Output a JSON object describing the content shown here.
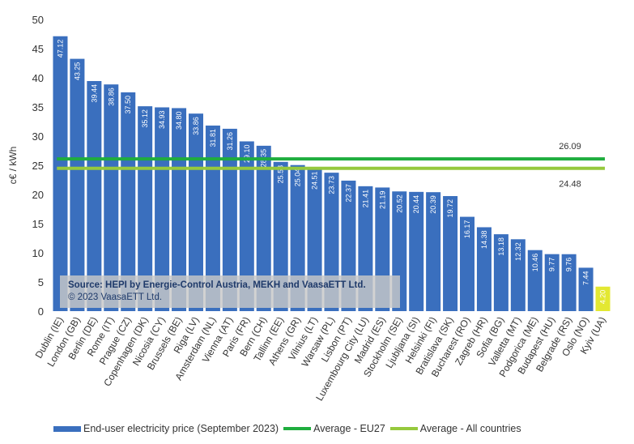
{
  "chart_data": {
    "type": "bar",
    "ylabel": "c€ / kWh",
    "ylim": [
      0,
      50
    ],
    "yticks": [
      0,
      5,
      10,
      15,
      20,
      25,
      30,
      35,
      40,
      45,
      50
    ],
    "categories": [
      "Dublin (IE)",
      "London (GB)",
      "Berlin (DE)",
      "Rome (IT)",
      "Prague (CZ)",
      "Copenhagen (DK)",
      "Nicosia (CY)",
      "Brussels (BE)",
      "Riga (LV)",
      "Amsterdam (NL)",
      "Vienna (AT)",
      "Paris (FR)",
      "Bern (CH)",
      "Tallinn (EE)",
      "Athens (GR)",
      "Vilnius (LT)",
      "Warsaw (PL)",
      "Lisbon (PT)",
      "Luxembourg City (LU)",
      "Madrid (ES)",
      "Stockholm (SE)",
      "Ljubljana (SI)",
      "Helsinki (FI)",
      "Bratislava (SK)",
      "Bucharest (RO)",
      "Zagreb (HR)",
      "Sofia (BG)",
      "Valletta (MT)",
      "Podgorica (ME)",
      "Budapest (HU)",
      "Belgrade (RS)",
      "Oslo (NO)",
      "Kyiv (UA)"
    ],
    "values": [
      47.12,
      43.25,
      39.44,
      38.86,
      37.5,
      35.12,
      34.93,
      34.8,
      33.86,
      31.81,
      31.26,
      29.1,
      28.35,
      25.58,
      25.04,
      24.51,
      23.73,
      22.37,
      21.41,
      21.19,
      20.52,
      20.44,
      20.39,
      19.72,
      16.17,
      14.38,
      13.18,
      12.32,
      10.46,
      9.77,
      9.76,
      7.44,
      4.2
    ],
    "value_labels": [
      "47.12",
      "43.25",
      "39.44",
      "38.86",
      "37.50",
      "35.12",
      "34.93",
      "34.80",
      "33.86",
      "31.81",
      "31.26",
      "29.10",
      "28.35",
      "25.58",
      "25.04",
      "24.51",
      "23.73",
      "22.37",
      "21.41",
      "21.19",
      "20.52",
      "20.44",
      "20.39",
      "19.72",
      "16.17",
      "14.38",
      "13.18",
      "12.32",
      "10.46",
      "9.77",
      "9.76",
      "7.44",
      "4.20"
    ],
    "bar_colors": {
      "default": "#3a6fbe",
      "highlight": "#e3e832",
      "highlight_category": "Kyiv (UA)"
    },
    "averages": [
      {
        "name": "Average - EU27",
        "value": 26.09,
        "label": "26.09",
        "color": "#1fad3e"
      },
      {
        "name": "Average - All countries",
        "value": 24.48,
        "label": "24.48",
        "color": "#96c93d"
      }
    ],
    "legend": {
      "placement": "bottom",
      "bars_label": "End-user electricity price (September 2023)",
      "eu27_label": "Average - EU27",
      "all_label": "Average - All countries"
    },
    "grid": false
  },
  "source": {
    "title": "Source: HEPI by Energie-Control Austria, MEKH and VaasaETT Ltd.",
    "copyright": "© 2023 VaasaETT Ltd."
  }
}
